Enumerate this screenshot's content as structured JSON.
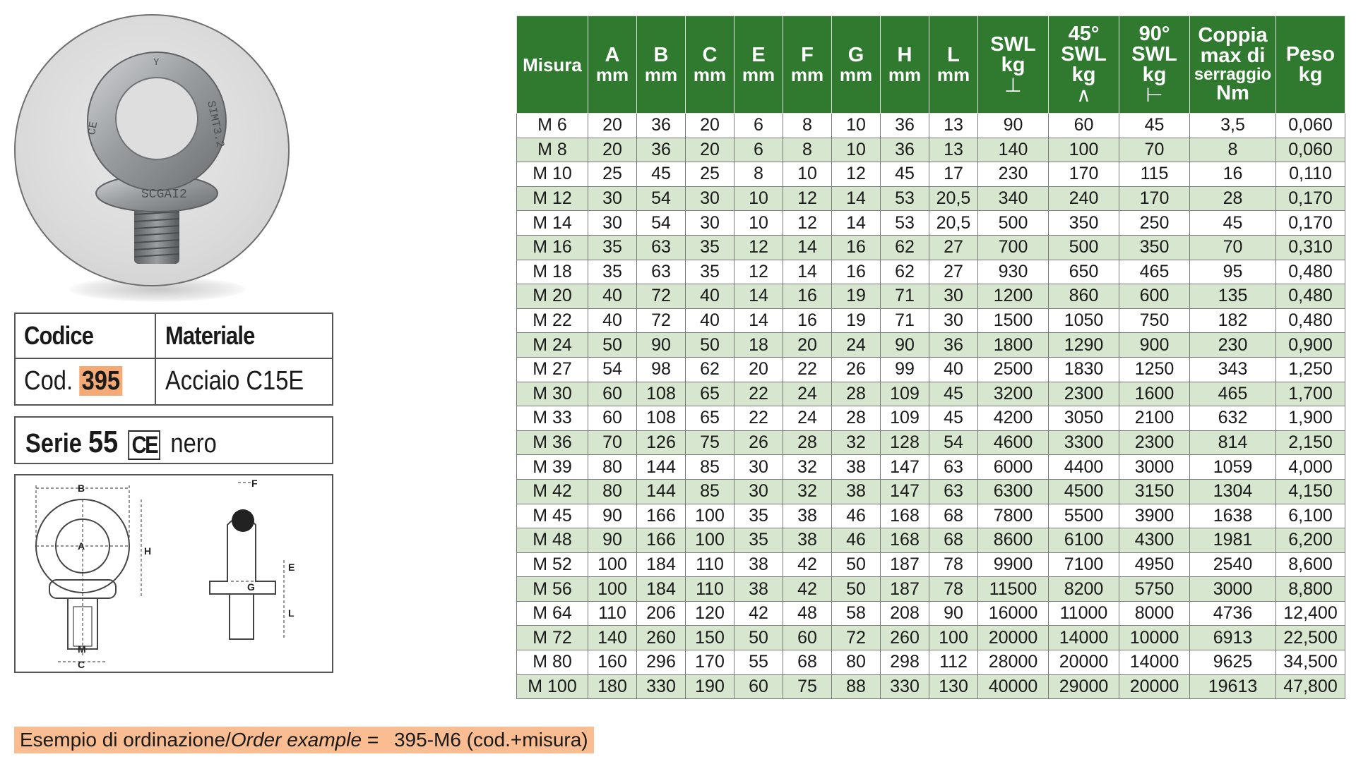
{
  "photo": {
    "eye_text": "SCGAI2",
    "ring_left_text": "CE",
    "ring_right_text": "SIMT3.2",
    "ring_top_text": "Y"
  },
  "code_box": {
    "head_code": "Codice",
    "head_material": "Materiale",
    "code_prefix": "Cod.",
    "code_value": "395",
    "material_value": "Acciaio C15E",
    "code_highlight_color": "#f5a974"
  },
  "serie_box": {
    "serie_label": "Serie",
    "serie_value": "55",
    "ce_mark": "CE",
    "finish": "nero"
  },
  "drawing": {
    "labels": {
      "B": "B",
      "A": "A",
      "H": "H",
      "M": "M",
      "C": "C",
      "F": "F",
      "E": "E",
      "G": "G",
      "L": "L"
    }
  },
  "table": {
    "header_color": "#2f7a2f",
    "stripe_color": "#d7e6cf",
    "headers": [
      {
        "top": "Misura",
        "sub": "",
        "sym": ""
      },
      {
        "top": "A",
        "sub": "mm",
        "sym": ""
      },
      {
        "top": "B",
        "sub": "mm",
        "sym": ""
      },
      {
        "top": "C",
        "sub": "mm",
        "sym": ""
      },
      {
        "top": "E",
        "sub": "mm",
        "sym": ""
      },
      {
        "top": "F",
        "sub": "mm",
        "sym": ""
      },
      {
        "top": "G",
        "sub": "mm",
        "sym": ""
      },
      {
        "top": "H",
        "sub": "mm",
        "sym": ""
      },
      {
        "top": "L",
        "sub": "mm",
        "sym": ""
      },
      {
        "top": "SWL",
        "sub": "kg",
        "sym": "⊥"
      },
      {
        "top": "45°",
        "sub": "SWL",
        "sub2": "kg",
        "sym": "∧"
      },
      {
        "top": "90°",
        "sub": "SWL",
        "sub2": "kg",
        "sym": "⊢"
      },
      {
        "top": "Coppia",
        "sub": "max di",
        "sub2": "serraggio",
        "sub3": "Nm"
      },
      {
        "top": "Peso",
        "sub": "kg",
        "sym": ""
      }
    ],
    "rows": [
      [
        "M 6",
        "20",
        "36",
        "20",
        "6",
        "8",
        "10",
        "36",
        "13",
        "90",
        "60",
        "45",
        "3,5",
        "0,060"
      ],
      [
        "M 8",
        "20",
        "36",
        "20",
        "6",
        "8",
        "10",
        "36",
        "13",
        "140",
        "100",
        "70",
        "8",
        "0,060"
      ],
      [
        "M 10",
        "25",
        "45",
        "25",
        "8",
        "10",
        "12",
        "45",
        "17",
        "230",
        "170",
        "115",
        "16",
        "0,110"
      ],
      [
        "M 12",
        "30",
        "54",
        "30",
        "10",
        "12",
        "14",
        "53",
        "20,5",
        "340",
        "240",
        "170",
        "28",
        "0,170"
      ],
      [
        "M 14",
        "30",
        "54",
        "30",
        "10",
        "12",
        "14",
        "53",
        "20,5",
        "500",
        "350",
        "250",
        "45",
        "0,170"
      ],
      [
        "M 16",
        "35",
        "63",
        "35",
        "12",
        "14",
        "16",
        "62",
        "27",
        "700",
        "500",
        "350",
        "70",
        "0,310"
      ],
      [
        "M 18",
        "35",
        "63",
        "35",
        "12",
        "14",
        "16",
        "62",
        "27",
        "930",
        "650",
        "465",
        "95",
        "0,480"
      ],
      [
        "M 20",
        "40",
        "72",
        "40",
        "14",
        "16",
        "19",
        "71",
        "30",
        "1200",
        "860",
        "600",
        "135",
        "0,480"
      ],
      [
        "M 22",
        "40",
        "72",
        "40",
        "14",
        "16",
        "19",
        "71",
        "30",
        "1500",
        "1050",
        "750",
        "182",
        "0,480"
      ],
      [
        "M 24",
        "50",
        "90",
        "50",
        "18",
        "20",
        "24",
        "90",
        "36",
        "1800",
        "1290",
        "900",
        "230",
        "0,900"
      ],
      [
        "M 27",
        "54",
        "98",
        "62",
        "20",
        "22",
        "26",
        "99",
        "40",
        "2500",
        "1830",
        "1250",
        "343",
        "1,250"
      ],
      [
        "M 30",
        "60",
        "108",
        "65",
        "22",
        "24",
        "28",
        "109",
        "45",
        "3200",
        "2300",
        "1600",
        "465",
        "1,700"
      ],
      [
        "M 33",
        "60",
        "108",
        "65",
        "22",
        "24",
        "28",
        "109",
        "45",
        "4200",
        "3050",
        "2100",
        "632",
        "1,900"
      ],
      [
        "M 36",
        "70",
        "126",
        "75",
        "26",
        "28",
        "32",
        "128",
        "54",
        "4600",
        "3300",
        "2300",
        "814",
        "2,150"
      ],
      [
        "M 39",
        "80",
        "144",
        "85",
        "30",
        "32",
        "38",
        "147",
        "63",
        "6000",
        "4400",
        "3000",
        "1059",
        "4,000"
      ],
      [
        "M 42",
        "80",
        "144",
        "85",
        "30",
        "32",
        "38",
        "147",
        "63",
        "6300",
        "4500",
        "3150",
        "1304",
        "4,150"
      ],
      [
        "M 45",
        "90",
        "166",
        "100",
        "35",
        "38",
        "46",
        "168",
        "68",
        "7800",
        "5500",
        "3900",
        "1638",
        "6,100"
      ],
      [
        "M 48",
        "90",
        "166",
        "100",
        "35",
        "38",
        "46",
        "168",
        "68",
        "8600",
        "6100",
        "4300",
        "1981",
        "6,200"
      ],
      [
        "M 52",
        "100",
        "184",
        "110",
        "38",
        "42",
        "50",
        "187",
        "78",
        "9900",
        "7100",
        "4950",
        "2540",
        "8,600"
      ],
      [
        "M 56",
        "100",
        "184",
        "110",
        "38",
        "42",
        "50",
        "187",
        "78",
        "11500",
        "8200",
        "5750",
        "3000",
        "8,800"
      ],
      [
        "M 64",
        "110",
        "206",
        "120",
        "42",
        "48",
        "58",
        "208",
        "90",
        "16000",
        "11000",
        "8000",
        "4736",
        "12,400"
      ],
      [
        "M 72",
        "140",
        "260",
        "150",
        "50",
        "60",
        "72",
        "260",
        "100",
        "20000",
        "14000",
        "10000",
        "6913",
        "22,500"
      ],
      [
        "M 80",
        "160",
        "296",
        "170",
        "55",
        "68",
        "80",
        "298",
        "112",
        "28000",
        "20000",
        "14000",
        "9625",
        "34,500"
      ],
      [
        "M 100",
        "180",
        "330",
        "190",
        "60",
        "75",
        "88",
        "330",
        "130",
        "40000",
        "29000",
        "20000",
        "19613",
        "47,800"
      ]
    ]
  },
  "order": {
    "label_it": "Esempio di ordinazione/",
    "label_en": "Order example",
    "equals": "=",
    "value": "395-M6 (cod.+misura)"
  }
}
